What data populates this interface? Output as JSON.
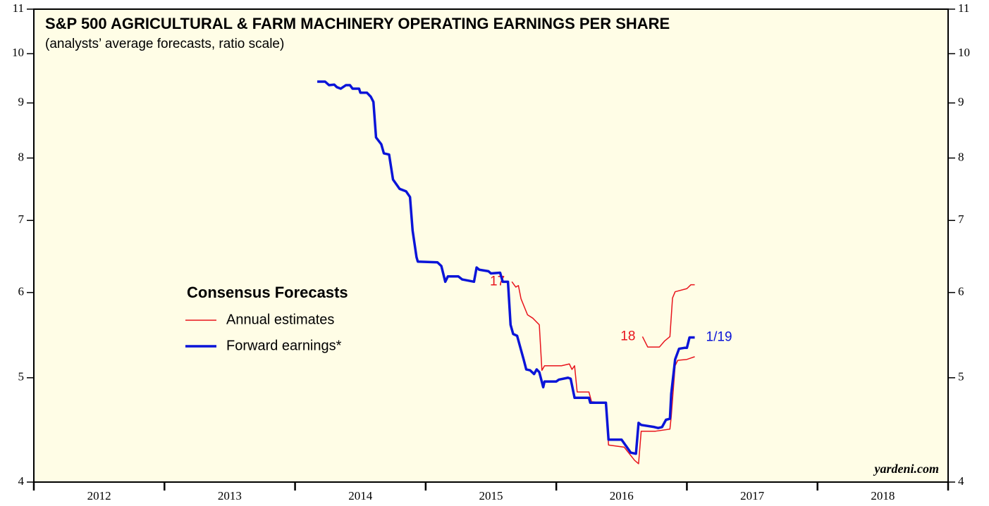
{
  "chart_data": {
    "type": "line",
    "title": "S&P 500 AGRICULTURAL & FARM MACHINERY OPERATING EARNINGS PER SHARE",
    "subtitle": "(analysts’ average forecasts, ratio scale)",
    "source": "yardeni.com",
    "log_scale": true,
    "xlim": [
      2012,
      2019
    ],
    "xticks": [
      {
        "value": 2012.5,
        "label": "2012"
      },
      {
        "value": 2013.5,
        "label": "2013"
      },
      {
        "value": 2014.5,
        "label": "2014"
      },
      {
        "value": 2015.5,
        "label": "2015"
      },
      {
        "value": 2016.5,
        "label": "2016"
      },
      {
        "value": 2017.5,
        "label": "2017"
      },
      {
        "value": 2018.5,
        "label": "2018"
      }
    ],
    "ylim": [
      4,
      11
    ],
    "yticks": [
      4,
      5,
      6,
      7,
      8,
      9,
      10,
      11
    ],
    "legend": {
      "title": "Consensus Forecasts",
      "entries": [
        {
          "name": "Annual estimates",
          "color": "#e8141c"
        },
        {
          "name": "Forward earnings*",
          "color": "#0a14d8"
        }
      ]
    },
    "series": [
      {
        "label": "17",
        "color": "#e8141c",
        "width": 1.5,
        "label_side": "start",
        "x": [
          2015.66,
          2015.69,
          2015.71,
          2015.73,
          2015.78,
          2015.82,
          2015.87,
          2015.89,
          2015.91,
          2016.04,
          2016.1,
          2016.12,
          2016.14,
          2016.16,
          2016.25,
          2016.27,
          2016.38,
          2016.4,
          2016.52,
          2016.6,
          2016.63,
          2016.65,
          2016.76,
          2016.87,
          2016.88,
          2016.91,
          2016.93,
          2017.0,
          2017.06
        ],
        "values": [
          6.14,
          6.07,
          6.09,
          5.92,
          5.72,
          5.68,
          5.6,
          5.08,
          5.13,
          5.13,
          5.15,
          5.09,
          5.13,
          4.85,
          4.85,
          4.75,
          4.74,
          4.33,
          4.31,
          4.19,
          4.16,
          4.46,
          4.46,
          4.48,
          4.6,
          5.13,
          5.19,
          5.2,
          5.23
        ]
      },
      {
        "label": "18",
        "color": "#e8141c",
        "width": 1.5,
        "label_side": "start",
        "x": [
          2016.66,
          2016.7,
          2016.79,
          2016.83,
          2016.87,
          2016.89,
          2016.91,
          2017.0,
          2017.03,
          2017.06
        ],
        "values": [
          5.46,
          5.34,
          5.34,
          5.41,
          5.46,
          5.93,
          6.01,
          6.05,
          6.1,
          6.1
        ]
      },
      {
        "label": "1/19",
        "color": "#0a14d8",
        "width": 3.5,
        "label_side": "end",
        "x": [
          2014.17,
          2014.23,
          2014.26,
          2014.3,
          2014.32,
          2014.35,
          2014.39,
          2014.42,
          2014.44,
          2014.49,
          2014.5,
          2014.55,
          2014.58,
          2014.6,
          2014.62,
          2014.66,
          2014.68,
          2014.72,
          2014.75,
          2014.8,
          2014.85,
          2014.88,
          2014.9,
          2014.93,
          2014.94,
          2015.09,
          2015.12,
          2015.15,
          2015.17,
          2015.25,
          2015.28,
          2015.37,
          2015.39,
          2015.41,
          2015.48,
          2015.5,
          2015.57,
          2015.59,
          2015.63,
          2015.65,
          2015.67,
          2015.7,
          2015.72,
          2015.75,
          2015.77,
          2015.8,
          2015.83,
          2015.85,
          2015.87,
          2015.9,
          2015.91,
          2016.0,
          2016.02,
          2016.09,
          2016.11,
          2016.14,
          2016.25,
          2016.26,
          2016.38,
          2016.4,
          2016.5,
          2016.57,
          2016.61,
          2016.63,
          2016.65,
          2016.75,
          2016.78,
          2016.81,
          2016.84,
          2016.87,
          2016.88,
          2016.91,
          2016.94,
          2016.98,
          2017.0,
          2017.02,
          2017.06
        ],
        "values": [
          9.42,
          9.42,
          9.35,
          9.36,
          9.31,
          9.28,
          9.35,
          9.35,
          9.28,
          9.28,
          9.2,
          9.2,
          9.12,
          9.02,
          8.36,
          8.24,
          8.08,
          8.06,
          7.64,
          7.49,
          7.45,
          7.36,
          6.85,
          6.47,
          6.41,
          6.4,
          6.35,
          6.14,
          6.21,
          6.21,
          6.17,
          6.14,
          6.33,
          6.3,
          6.28,
          6.25,
          6.26,
          6.14,
          6.14,
          5.6,
          5.49,
          5.47,
          5.36,
          5.2,
          5.09,
          5.08,
          5.04,
          5.09,
          5.06,
          4.9,
          4.96,
          4.96,
          4.98,
          5.0,
          4.99,
          4.79,
          4.79,
          4.74,
          4.74,
          4.38,
          4.38,
          4.26,
          4.25,
          4.54,
          4.52,
          4.5,
          4.49,
          4.5,
          4.57,
          4.58,
          4.83,
          5.2,
          5.32,
          5.33,
          5.33,
          5.45,
          5.45
        ]
      }
    ]
  }
}
